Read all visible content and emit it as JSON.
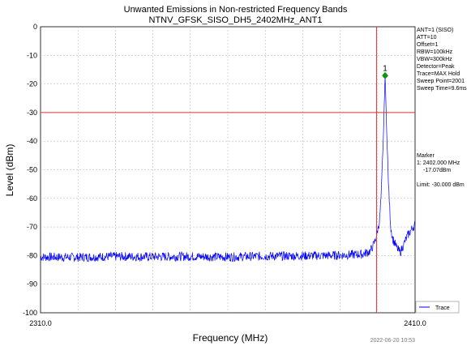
{
  "chart_data": {
    "type": "line",
    "title": "Unwanted Emissions in Non-restricted Frequency Bands",
    "subtitle": "NTNV_GFSK_SISO_DH5_2402MHz_ANT1",
    "xlabel": "Frequency (MHz)",
    "ylabel": "Level (dBm)",
    "xlim": [
      2310.0,
      2410.0
    ],
    "ylim": [
      -100,
      0
    ],
    "x_tick_labels": [
      "2310.0",
      "2410.0"
    ],
    "y_ticks": [
      0,
      -10,
      -20,
      -30,
      -40,
      -50,
      -60,
      -70,
      -80,
      -90,
      -100
    ],
    "grid": true,
    "legend": {
      "placement": "bottom-right",
      "entries": [
        "Trace"
      ]
    },
    "limit_line": -30.0,
    "marker_line_x": 2399.7,
    "marker": {
      "label": "1",
      "x": 2402.0,
      "y": -17.07
    },
    "series": [
      {
        "name": "Trace",
        "color": "#0000ff",
        "noise_floor": -80.5,
        "x": [
          2310,
          2320,
          2330,
          2340,
          2350,
          2360,
          2370,
          2380,
          2390,
          2396,
          2398,
          2399,
          2399.7,
          2400.5,
          2401,
          2401.5,
          2402,
          2402.5,
          2403,
          2403.5,
          2404,
          2405,
          2406,
          2407,
          2408,
          2409,
          2410
        ],
        "y": [
          -80.5,
          -80.6,
          -80.3,
          -80.4,
          -80.3,
          -80.5,
          -80.2,
          -80.1,
          -79.9,
          -79.5,
          -78.5,
          -76,
          -73,
          -68,
          -58,
          -40,
          -17.07,
          -40,
          -58,
          -70,
          -74,
          -77,
          -79,
          -76,
          -73,
          -71,
          -69
        ]
      }
    ]
  },
  "info_box": {
    "lines": [
      "ANT=1 (SISO)",
      "ATT=10",
      "Offset=1",
      "RBW=100kHz",
      "VBW=300kHz",
      "Detector=Peak",
      "Trace=MAX Hold",
      "Sweep Point=2001",
      "Sweep Time=9.6ms"
    ]
  },
  "marker_box": {
    "heading": "Marker",
    "line1": "1: 2402.000 MHz",
    "line2": "-17.07dBm",
    "limit": "Limit: -30.000 dBm"
  },
  "timestamp": "2022-06-20 10:53",
  "colors": {
    "limit_line": "#e03030",
    "trace": "#0000ff",
    "marker": "#00a000",
    "grid": "#b0b0b0"
  }
}
